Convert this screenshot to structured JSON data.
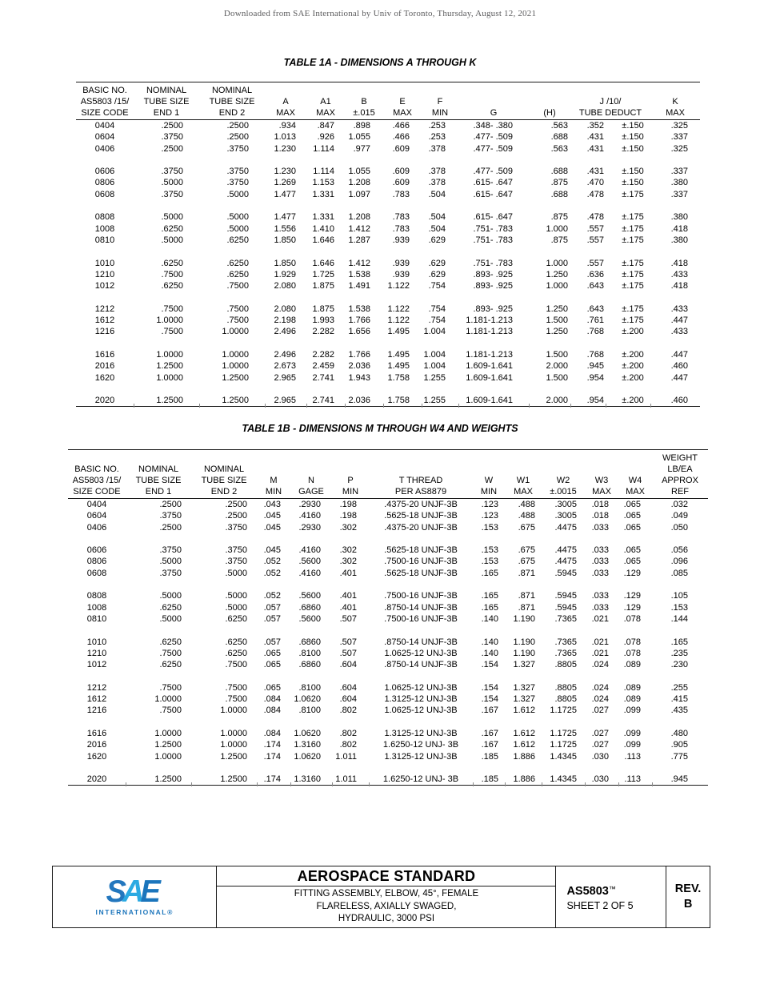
{
  "page": {
    "watermark": "Downloaded from SAE International by Univ of Toronto, Thursday, August 12, 2021"
  },
  "colors": {
    "sae_logo_s": "#2377BE",
    "sae_logo_a": "#2BAAE2",
    "sae_logo_e": "#1B75BC",
    "sae_logo_text": "#1C75BC"
  },
  "table1a": {
    "title": "TABLE 1A - DIMENSIONS A THROUGH K",
    "headers": [
      "BASIC NO.\nAS5803 /15/\nSIZE CODE",
      "NOMINAL\nTUBE SIZE\nEND 1",
      "NOMINAL\nTUBE SIZE\nEND 2",
      "A\nMAX",
      "A1\nMAX",
      "B\n±.015",
      "E\nMAX",
      "F\nMIN",
      "G",
      "(H)",
      "J /10/\nTUBE DEDUCT",
      "K\nMAX"
    ],
    "rows": [
      [
        "0404",
        ".2500",
        ".2500",
        ".934",
        ".847",
        ".898",
        ".466",
        ".253",
        ".348- .380",
        ".563",
        ".352",
        "±.150",
        ".325"
      ],
      [
        "0604",
        ".3750",
        ".2500",
        "1.013",
        ".926",
        "1.055",
        ".466",
        ".253",
        ".477- .509",
        ".688",
        ".431",
        "±.150",
        ".337"
      ],
      [
        "0406",
        ".2500",
        ".3750",
        "1.230",
        "1.114",
        ".977",
        ".609",
        ".378",
        ".477- .509",
        ".563",
        ".431",
        "±.150",
        ".325"
      ],
      null,
      [
        "0606",
        ".3750",
        ".3750",
        "1.230",
        "1.114",
        "1.055",
        ".609",
        ".378",
        ".477- .509",
        ".688",
        ".431",
        "±.150",
        ".337"
      ],
      [
        "0806",
        ".5000",
        ".3750",
        "1.269",
        "1.153",
        "1.208",
        ".609",
        ".378",
        ".615- .647",
        ".875",
        ".470",
        "±.150",
        ".380"
      ],
      [
        "0608",
        ".3750",
        ".5000",
        "1.477",
        "1.331",
        "1.097",
        ".783",
        ".504",
        ".615- .647",
        ".688",
        ".478",
        "±.175",
        ".337"
      ],
      null,
      [
        "0808",
        ".5000",
        ".5000",
        "1.477",
        "1.331",
        "1.208",
        ".783",
        ".504",
        ".615- .647",
        ".875",
        ".478",
        "±.175",
        ".380"
      ],
      [
        "1008",
        ".6250",
        ".5000",
        "1.556",
        "1.410",
        "1.412",
        ".783",
        ".504",
        ".751- .783",
        "1.000",
        ".557",
        "±.175",
        ".418"
      ],
      [
        "0810",
        ".5000",
        ".6250",
        "1.850",
        "1.646",
        "1.287",
        ".939",
        ".629",
        ".751- .783",
        ".875",
        ".557",
        "±.175",
        ".380"
      ],
      null,
      [
        "1010",
        ".6250",
        ".6250",
        "1.850",
        "1.646",
        "1.412",
        ".939",
        ".629",
        ".751- .783",
        "1.000",
        ".557",
        "±.175",
        ".418"
      ],
      [
        "1210",
        ".7500",
        ".6250",
        "1.929",
        "1.725",
        "1.538",
        ".939",
        ".629",
        ".893- .925",
        "1.250",
        ".636",
        "±.175",
        ".433"
      ],
      [
        "1012",
        ".6250",
        ".7500",
        "2.080",
        "1.875",
        "1.491",
        "1.122",
        ".754",
        ".893- .925",
        "1.000",
        ".643",
        "±.175",
        ".418"
      ],
      null,
      [
        "1212",
        ".7500",
        ".7500",
        "2.080",
        "1.875",
        "1.538",
        "1.122",
        ".754",
        ".893- .925",
        "1.250",
        ".643",
        "±.175",
        ".433"
      ],
      [
        "1612",
        "1.0000",
        ".7500",
        "2.198",
        "1.993",
        "1.766",
        "1.122",
        ".754",
        "1.181-1.213",
        "1.500",
        ".761",
        "±.175",
        ".447"
      ],
      [
        "1216",
        ".7500",
        "1.0000",
        "2.496",
        "2.282",
        "1.656",
        "1.495",
        "1.004",
        "1.181-1.213",
        "1.250",
        ".768",
        "±.200",
        ".433"
      ],
      null,
      [
        "1616",
        "1.0000",
        "1.0000",
        "2.496",
        "2.282",
        "1.766",
        "1.495",
        "1.004",
        "1.181-1.213",
        "1.500",
        ".768",
        "±.200",
        ".447"
      ],
      [
        "2016",
        "1.2500",
        "1.0000",
        "2.673",
        "2.459",
        "2.036",
        "1.495",
        "1.004",
        "1.609-1.641",
        "2.000",
        ".945",
        "±.200",
        ".460"
      ],
      [
        "1620",
        "1.0000",
        "1.2500",
        "2.965",
        "2.741",
        "1.943",
        "1.758",
        "1.255",
        "1.609-1.641",
        "1.500",
        ".954",
        "±.200",
        ".447"
      ],
      null,
      [
        "2020",
        "1.2500",
        "1.2500",
        "2.965",
        "2.741",
        "2.036",
        "1.758",
        "1.255",
        "1.609-1.641",
        "2.000",
        ".954",
        "±.200",
        ".460"
      ]
    ]
  },
  "table1b": {
    "title": "TABLE 1B - DIMENSIONS M THROUGH W4 AND WEIGHTS",
    "headers": [
      "BASIC NO.\nAS5803 /15/\nSIZE CODE",
      "NOMINAL\nTUBE SIZE\nEND 1",
      "NOMINAL\nTUBE SIZE\nEND 2",
      "M\nMIN",
      "N\nGAGE",
      "P\nMIN",
      "T THREAD\nPER AS8879",
      "W\nMIN",
      "W1\nMAX",
      "W2\n±.0015",
      "W3\nMAX",
      "W4\nMAX",
      "WEIGHT\nLB/EA\nAPPROX\nREF"
    ],
    "rows": [
      [
        "0404",
        ".2500",
        ".2500",
        ".043",
        ".2930",
        ".198",
        ".4375-20 UNJF-3B",
        ".123",
        ".488",
        ".3005",
        ".018",
        ".065",
        ".032"
      ],
      [
        "0604",
        ".3750",
        ".2500",
        ".045",
        ".4160",
        ".198",
        ".5625-18 UNJF-3B",
        ".123",
        ".488",
        ".3005",
        ".018",
        ".065",
        ".049"
      ],
      [
        "0406",
        ".2500",
        ".3750",
        ".045",
        ".2930",
        ".302",
        ".4375-20 UNJF-3B",
        ".153",
        ".675",
        ".4475",
        ".033",
        ".065",
        ".050"
      ],
      null,
      [
        "0606",
        ".3750",
        ".3750",
        ".045",
        ".4160",
        ".302",
        ".5625-18 UNJF-3B",
        ".153",
        ".675",
        ".4475",
        ".033",
        ".065",
        ".056"
      ],
      [
        "0806",
        ".5000",
        ".3750",
        ".052",
        ".5600",
        ".302",
        ".7500-16 UNJF-3B",
        ".153",
        ".675",
        ".4475",
        ".033",
        ".065",
        ".096"
      ],
      [
        "0608",
        ".3750",
        ".5000",
        ".052",
        ".4160",
        ".401",
        ".5625-18 UNJF-3B",
        ".165",
        ".871",
        ".5945",
        ".033",
        ".129",
        ".085"
      ],
      null,
      [
        "0808",
        ".5000",
        ".5000",
        ".052",
        ".5600",
        ".401",
        ".7500-16 UNJF-3B",
        ".165",
        ".871",
        ".5945",
        ".033",
        ".129",
        ".105"
      ],
      [
        "1008",
        ".6250",
        ".5000",
        ".057",
        ".6860",
        ".401",
        ".8750-14 UNJF-3B",
        ".165",
        ".871",
        ".5945",
        ".033",
        ".129",
        ".153"
      ],
      [
        "0810",
        ".5000",
        ".6250",
        ".057",
        ".5600",
        ".507",
        ".7500-16 UNJF-3B",
        ".140",
        "1.190",
        ".7365",
        ".021",
        ".078",
        ".144"
      ],
      null,
      [
        "1010",
        ".6250",
        ".6250",
        ".057",
        ".6860",
        ".507",
        ".8750-14 UNJF-3B",
        ".140",
        "1.190",
        ".7365",
        ".021",
        ".078",
        ".165"
      ],
      [
        "1210",
        ".7500",
        ".6250",
        ".065",
        ".8100",
        ".507",
        "1.0625-12 UNJ-3B",
        ".140",
        "1.190",
        ".7365",
        ".021",
        ".078",
        ".235"
      ],
      [
        "1012",
        ".6250",
        ".7500",
        ".065",
        ".6860",
        ".604",
        ".8750-14 UNJF-3B",
        ".154",
        "1.327",
        ".8805",
        ".024",
        ".089",
        ".230"
      ],
      null,
      [
        "1212",
        ".7500",
        ".7500",
        ".065",
        ".8100",
        ".604",
        "1.0625-12 UNJ-3B",
        ".154",
        "1.327",
        ".8805",
        ".024",
        ".089",
        ".255"
      ],
      [
        "1612",
        "1.0000",
        ".7500",
        ".084",
        "1.0620",
        ".604",
        "1.3125-12 UNJ-3B",
        ".154",
        "1.327",
        ".8805",
        ".024",
        ".089",
        ".415"
      ],
      [
        "1216",
        ".7500",
        "1.0000",
        ".084",
        ".8100",
        ".802",
        "1.0625-12 UNJ-3B",
        ".167",
        "1.612",
        "1.1725",
        ".027",
        ".099",
        ".435"
      ],
      null,
      [
        "1616",
        "1.0000",
        "1.0000",
        ".084",
        "1.0620",
        ".802",
        "1.3125-12 UNJ-3B",
        ".167",
        "1.612",
        "1.1725",
        ".027",
        ".099",
        ".480"
      ],
      [
        "2016",
        "1.2500",
        "1.0000",
        ".174",
        "1.3160",
        ".802",
        "1.6250-12 UNJ- 3B",
        ".167",
        "1.612",
        "1.1725",
        ".027",
        ".099",
        ".905"
      ],
      [
        "1620",
        "1.0000",
        "1.2500",
        ".174",
        "1.0620",
        "1.011",
        "1.3125-12 UNJ-3B",
        ".185",
        "1.886",
        "1.4345",
        ".030",
        ".113",
        ".775"
      ],
      null,
      [
        "2020",
        "1.2500",
        "1.2500",
        ".174",
        "1.3160",
        "1.011",
        "1.6250-12 UNJ- 3B",
        ".185",
        "1.886",
        "1.4345",
        ".030",
        ".113",
        ".945"
      ]
    ]
  },
  "footer": {
    "logo": {
      "letters": [
        "S",
        "A",
        "E"
      ],
      "subtext": "INTERNATIONAL®"
    },
    "doc_type": "AEROSPACE STANDARD",
    "subtitle_lines": [
      "FITTING ASSEMBLY, ELBOW, 45°, FEMALE",
      "FLARELESS, AXIALLY SWAGED,",
      "HYDRAULIC, 3000 PSI"
    ],
    "doc_number": "AS5803",
    "doc_number_tm": "™",
    "sheet": "SHEET 2 OF 5",
    "rev_label": "REV.",
    "rev_value": "B"
  }
}
